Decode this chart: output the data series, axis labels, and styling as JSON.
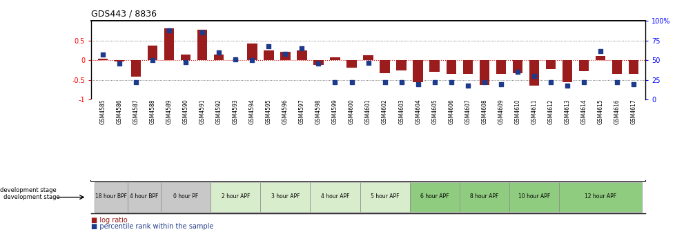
{
  "title": "GDS443 / 8836",
  "samples": [
    "GSM4585",
    "GSM4586",
    "GSM4587",
    "GSM4588",
    "GSM4589",
    "GSM4590",
    "GSM4591",
    "GSM4592",
    "GSM4593",
    "GSM4594",
    "GSM4595",
    "GSM4596",
    "GSM4597",
    "GSM4598",
    "GSM4599",
    "GSM4600",
    "GSM4601",
    "GSM4602",
    "GSM4603",
    "GSM4604",
    "GSM4605",
    "GSM4606",
    "GSM4607",
    "GSM4608",
    "GSM4609",
    "GSM4610",
    "GSM4611",
    "GSM4612",
    "GSM4613",
    "GSM4614",
    "GSM4615",
    "GSM4616",
    "GSM4617"
  ],
  "log_ratio": [
    0.05,
    -0.03,
    -0.42,
    0.38,
    0.82,
    0.15,
    0.78,
    0.14,
    0.0,
    0.42,
    0.25,
    0.22,
    0.25,
    -0.12,
    0.07,
    -0.18,
    0.13,
    -0.32,
    -0.26,
    -0.55,
    -0.3,
    -0.35,
    -0.35,
    -0.62,
    -0.35,
    -0.32,
    -0.65,
    -0.22,
    -0.55,
    -0.28,
    0.12,
    -0.35,
    -0.35
  ],
  "percentile": [
    57,
    46,
    22,
    50,
    88,
    48,
    85,
    60,
    51,
    50,
    68,
    58,
    65,
    46,
    22,
    22,
    47,
    22,
    22,
    20,
    22,
    22,
    18,
    22,
    20,
    35,
    30,
    22,
    18,
    22,
    62,
    22,
    20
  ],
  "ylim": [
    -1.0,
    1.0
  ],
  "yticks_left": [
    -1.0,
    -0.5,
    0.0,
    0.5
  ],
  "ytick_labels_left": [
    "-1",
    "-0.5",
    "0",
    "0.5"
  ],
  "yticks_right": [
    0,
    25,
    50,
    75,
    100
  ],
  "ytick_labels_right": [
    "0",
    "25",
    "50",
    "75",
    "100%"
  ],
  "bar_color": "#9B1C1C",
  "dot_color": "#1E3A8A",
  "hline_color": "#CC0000",
  "dotted_color": "#555555",
  "stage_groups": [
    {
      "label": "18 hour BPF",
      "start": 0,
      "end": 1,
      "color": "#C8C8C8"
    },
    {
      "label": "4 hour BPF",
      "start": 2,
      "end": 3,
      "color": "#C8C8C8"
    },
    {
      "label": "0 hour PF",
      "start": 4,
      "end": 6,
      "color": "#C8C8C8"
    },
    {
      "label": "2 hour APF",
      "start": 7,
      "end": 9,
      "color": "#D8EDCC"
    },
    {
      "label": "3 hour APF",
      "start": 10,
      "end": 12,
      "color": "#D8EDCC"
    },
    {
      "label": "4 hour APF",
      "start": 13,
      "end": 15,
      "color": "#D8EDCC"
    },
    {
      "label": "5 hour APF",
      "start": 16,
      "end": 18,
      "color": "#D8EDCC"
    },
    {
      "label": "6 hour APF",
      "start": 19,
      "end": 21,
      "color": "#90CC80"
    },
    {
      "label": "8 hour APF",
      "start": 22,
      "end": 24,
      "color": "#90CC80"
    },
    {
      "label": "10 hour APF",
      "start": 25,
      "end": 27,
      "color": "#90CC80"
    },
    {
      "label": "12 hour APF",
      "start": 28,
      "end": 32,
      "color": "#90CC80"
    }
  ]
}
